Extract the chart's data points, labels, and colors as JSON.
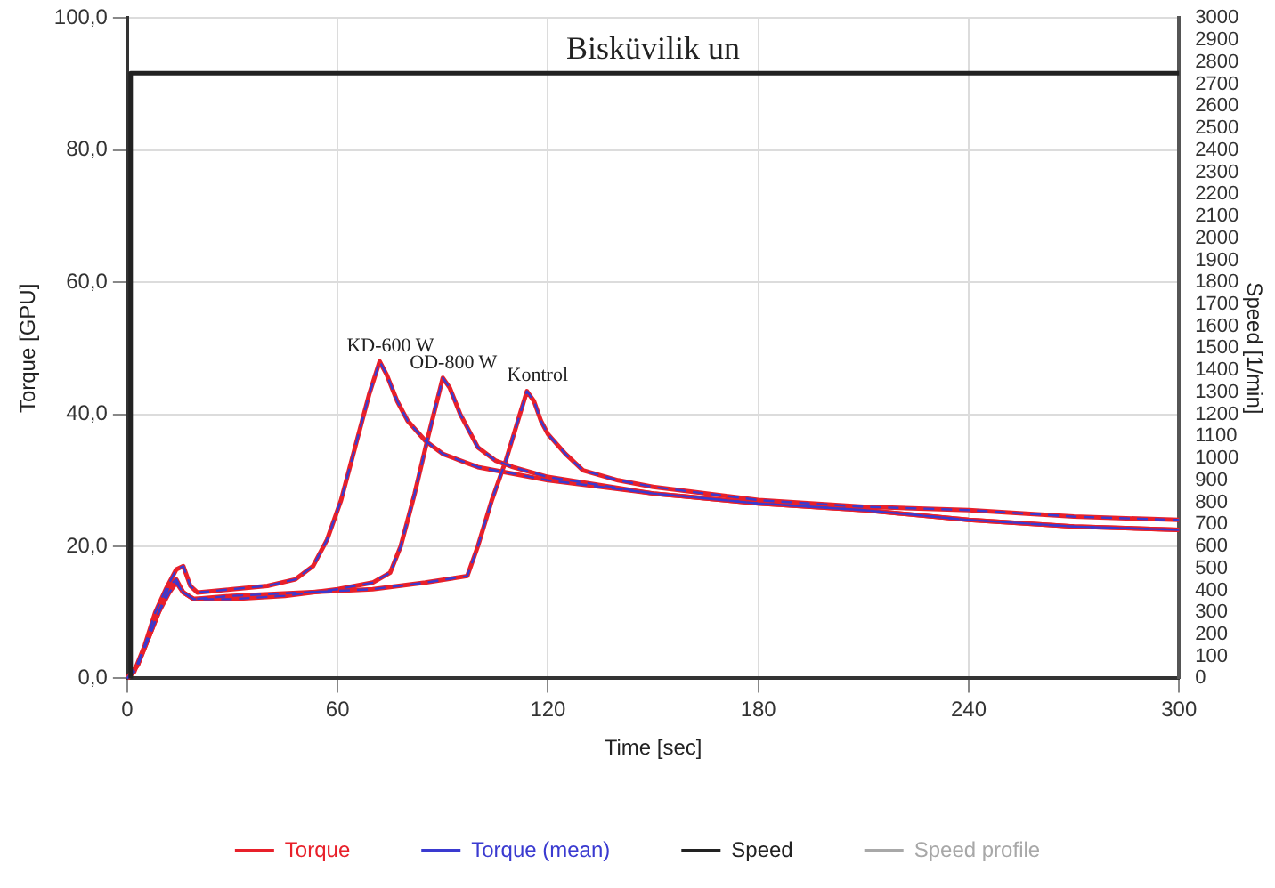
{
  "chart_data": {
    "type": "line",
    "title": "Bisküvilik un",
    "xlabel": "Time [sec]",
    "ylabel": "Torque [GPU]",
    "y2label": "Speed [1/min]",
    "xlim": [
      0,
      300
    ],
    "xticks": [
      0,
      60,
      120,
      180,
      240,
      300
    ],
    "ylim": [
      0,
      100
    ],
    "yticks": [
      {
        "value": 0,
        "label": "0,0"
      },
      {
        "value": 20,
        "label": "20,0"
      },
      {
        "value": 40,
        "label": "40,0"
      },
      {
        "value": 60,
        "label": "60,0"
      },
      {
        "value": 80,
        "label": "80,0"
      },
      {
        "value": 100,
        "label": "100,0"
      }
    ],
    "y2lim": [
      0,
      3000
    ],
    "y2ticks": [
      0,
      100,
      200,
      300,
      400,
      500,
      600,
      700,
      800,
      900,
      1000,
      1100,
      1200,
      1300,
      1400,
      1500,
      1600,
      1700,
      1800,
      1900,
      2000,
      2100,
      2200,
      2300,
      2400,
      2500,
      2600,
      2700,
      2800,
      2900,
      3000
    ],
    "grid": true,
    "legend": "bottom",
    "marker": "none",
    "line_style": "solid",
    "annotations": [
      {
        "text": "KD-600 W",
        "x": 72,
        "y": 48
      },
      {
        "text": "OD-800 W",
        "x": 90,
        "y": 45.5
      },
      {
        "text": "Kontrol",
        "x": 114,
        "y": 43.5
      }
    ],
    "series": [
      {
        "name": "Torque",
        "color": "#e8202a",
        "x": [
          0,
          2,
          5,
          8,
          11,
          14,
          16,
          18,
          20,
          30,
          40,
          48,
          53,
          57,
          61,
          65,
          69,
          72,
          74,
          77,
          80,
          85,
          90,
          95,
          100,
          120,
          150,
          180,
          210,
          240,
          270,
          300
        ],
        "values": [
          0,
          1,
          5,
          10,
          13.5,
          16.5,
          17,
          14,
          13,
          13.5,
          14,
          15,
          17,
          21,
          27,
          35,
          43,
          48,
          46,
          42,
          39,
          36,
          34,
          33,
          32,
          30,
          28,
          26.5,
          25.5,
          24,
          23,
          22.5
        ]
      },
      {
        "color": "#e8202a",
        "x": [
          0,
          3,
          6,
          9,
          12,
          14,
          16,
          19,
          30,
          45,
          60,
          70,
          75,
          78,
          82,
          86,
          90,
          92,
          95,
          100,
          105,
          110,
          120,
          150,
          180,
          210,
          240,
          270,
          300
        ],
        "values": [
          0,
          2,
          6,
          10,
          13,
          14.5,
          13,
          12,
          12,
          12.5,
          13.5,
          14.5,
          16,
          20,
          28,
          37,
          45.5,
          44,
          40,
          35,
          33,
          32,
          30.5,
          28,
          26.5,
          25.5,
          24,
          23,
          22.5
        ]
      },
      {
        "color": "#e8202a",
        "x": [
          0,
          3,
          6,
          9,
          12,
          14,
          16,
          19,
          30,
          50,
          70,
          85,
          97,
          100,
          104,
          108,
          112,
          114,
          116,
          118,
          120,
          125,
          130,
          140,
          150,
          180,
          210,
          240,
          270,
          300
        ],
        "values": [
          0,
          2,
          6,
          10,
          14,
          15,
          13,
          12,
          12.5,
          13,
          13.5,
          14.5,
          15.5,
          20,
          27,
          33,
          40,
          43.5,
          42,
          39,
          37,
          34,
          31.5,
          30,
          29,
          27,
          26,
          25.5,
          24.5,
          24
        ]
      },
      {
        "name": "Torque (mean)",
        "color": "#3a3ad0",
        "line_style": "dashed",
        "x": [
          0,
          2,
          5,
          8,
          11,
          14,
          16,
          18,
          20,
          30,
          40,
          48,
          53,
          57,
          61,
          65,
          69,
          72,
          74,
          77,
          80,
          85,
          90,
          95,
          100,
          120,
          150,
          180,
          210,
          240,
          270,
          300
        ],
        "values": [
          0,
          1,
          5,
          10,
          13.5,
          16.5,
          17,
          14,
          13,
          13.5,
          14,
          15,
          17,
          21,
          27,
          35,
          43,
          48,
          46,
          42,
          39,
          36,
          34,
          33,
          32,
          30,
          28,
          26.5,
          25.5,
          24,
          23,
          22.5
        ]
      },
      {
        "color": "#3a3ad0",
        "line_style": "dashed",
        "x": [
          0,
          3,
          6,
          9,
          12,
          14,
          16,
          19,
          30,
          45,
          60,
          70,
          75,
          78,
          82,
          86,
          90,
          92,
          95,
          100,
          105,
          110,
          120,
          150,
          180,
          210,
          240,
          270,
          300
        ],
        "values": [
          0,
          2,
          6,
          10,
          13,
          14.5,
          13,
          12,
          12,
          12.5,
          13.5,
          14.5,
          16,
          20,
          28,
          37,
          45.5,
          44,
          40,
          35,
          33,
          32,
          30.5,
          28,
          26.5,
          25.5,
          24,
          23,
          22.5
        ]
      },
      {
        "color": "#3a3ad0",
        "line_style": "dashed",
        "x": [
          0,
          3,
          6,
          9,
          12,
          14,
          16,
          19,
          30,
          50,
          70,
          85,
          97,
          100,
          104,
          108,
          112,
          114,
          116,
          118,
          120,
          125,
          130,
          140,
          150,
          180,
          210,
          240,
          270,
          300
        ],
        "values": [
          0,
          2,
          6,
          10,
          14,
          15,
          13,
          12,
          12.5,
          13,
          13.5,
          14.5,
          15.5,
          20,
          27,
          33,
          40,
          43.5,
          42,
          39,
          37,
          34,
          31.5,
          30,
          29,
          27,
          26,
          25.5,
          24.5,
          24
        ]
      },
      {
        "name": "Speed",
        "color": "#222222",
        "axis": "y2",
        "x": [
          1,
          1,
          60,
          120,
          180,
          240,
          300
        ],
        "values": [
          0,
          2750,
          2750,
          2750,
          2750,
          2750,
          2750
        ]
      },
      {
        "name": "Speed profile",
        "color": "#a8a8a8",
        "axis": "y2"
      }
    ]
  }
}
